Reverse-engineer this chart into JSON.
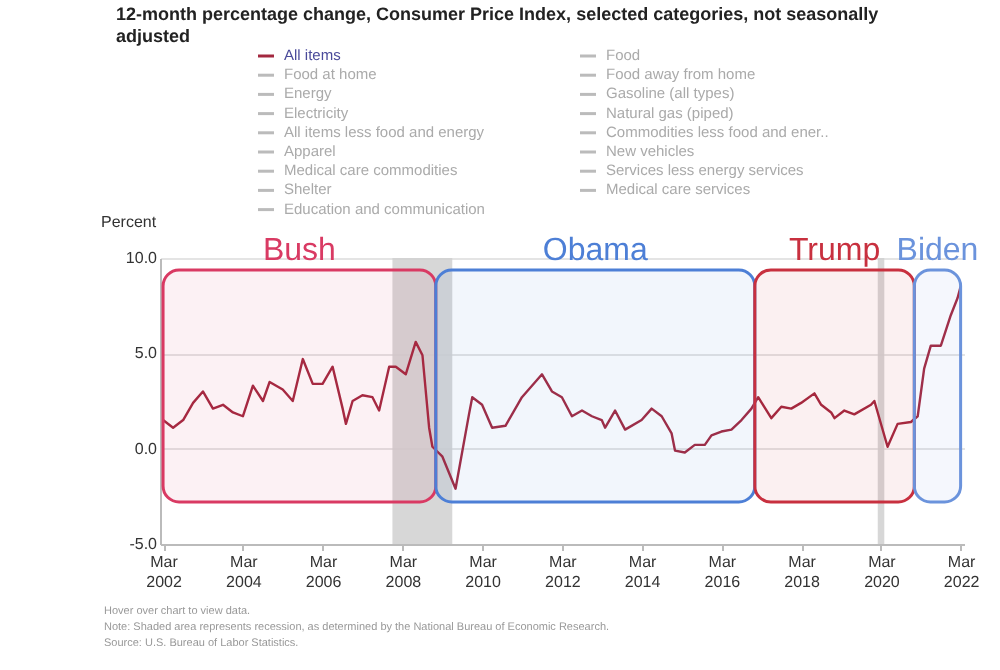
{
  "chart_data": {
    "type": "line",
    "title": [
      "12-month percentage change, Consumer Price Index, selected categories, not seasonally",
      "adjusted"
    ],
    "ylabel": "Percent",
    "x": [
      "2002-03",
      "2002-06",
      "2002-09",
      "2002-12",
      "2003-03",
      "2003-06",
      "2003-09",
      "2003-12",
      "2004-03",
      "2004-06",
      "2004-09",
      "2004-11",
      "2005-03",
      "2005-06",
      "2005-09",
      "2005-12",
      "2006-03",
      "2006-06",
      "2006-09",
      "2006-10",
      "2006-12",
      "2007-03",
      "2007-06",
      "2007-08",
      "2007-11",
      "2008-01",
      "2008-04",
      "2008-07",
      "2008-09",
      "2008-11",
      "2008-12",
      "2009-03",
      "2009-07",
      "2009-11",
      "2009-12",
      "2010-03",
      "2010-06",
      "2010-10",
      "2011-03",
      "2011-09",
      "2011-12",
      "2012-03",
      "2012-06",
      "2012-09",
      "2012-12",
      "2013-03",
      "2013-04",
      "2013-07",
      "2013-10",
      "2014-03",
      "2014-06",
      "2014-09",
      "2014-12",
      "2015-01",
      "2015-04",
      "2015-07",
      "2015-10",
      "2015-12",
      "2016-03",
      "2016-06",
      "2016-09",
      "2016-12",
      "2017-02",
      "2017-06",
      "2017-09",
      "2017-12",
      "2018-03",
      "2018-07",
      "2018-09",
      "2018-12",
      "2019-01",
      "2019-04",
      "2019-07",
      "2019-12",
      "2020-01",
      "2020-05",
      "2020-08",
      "2020-12",
      "2021-02",
      "2021-04",
      "2021-06",
      "2021-09",
      "2021-12",
      "2022-02",
      "2022-03"
    ],
    "series": [
      {
        "name": "All items",
        "color": "#a3283f",
        "values": [
          1.5,
          1.1,
          1.5,
          2.4,
          3.0,
          2.1,
          2.3,
          1.9,
          1.7,
          3.3,
          2.5,
          3.5,
          3.1,
          2.5,
          4.7,
          3.4,
          3.4,
          4.3,
          2.1,
          1.3,
          2.5,
          2.8,
          2.7,
          2.0,
          4.3,
          4.3,
          3.9,
          5.6,
          4.9,
          1.1,
          0.1,
          -0.4,
          -2.1,
          1.8,
          2.7,
          2.3,
          1.1,
          1.2,
          2.7,
          3.9,
          3.0,
          2.7,
          1.7,
          2.0,
          1.7,
          1.5,
          1.1,
          2.0,
          1.0,
          1.5,
          2.1,
          1.7,
          0.8,
          -0.1,
          -0.2,
          0.2,
          0.2,
          0.7,
          0.9,
          1.0,
          1.5,
          2.1,
          2.7,
          1.6,
          2.2,
          2.1,
          2.4,
          2.9,
          2.3,
          1.9,
          1.6,
          2.0,
          1.8,
          2.3,
          2.5,
          0.1,
          1.3,
          1.4,
          1.7,
          4.2,
          5.4,
          5.4,
          7.0,
          7.9,
          8.5
        ]
      },
      {
        "name": "Food",
        "color": "#bbbbbb",
        "values": [
          null,
          null,
          null,
          null,
          null,
          null,
          null,
          null,
          null,
          null,
          null,
          null,
          null,
          null,
          null,
          null,
          null,
          null,
          null,
          null,
          null,
          null,
          null,
          null,
          null,
          null,
          null,
          null,
          null,
          null,
          null,
          null,
          null,
          null,
          null,
          null,
          null,
          null,
          null,
          null,
          null,
          null,
          null,
          null,
          null,
          null,
          null,
          null,
          null,
          null,
          null,
          null,
          null,
          null,
          null,
          null,
          null,
          null,
          null,
          null,
          null,
          null,
          null,
          null,
          null,
          null,
          null,
          null,
          null,
          null,
          null,
          null,
          null,
          null,
          null,
          null,
          null,
          null,
          null,
          null,
          null,
          null,
          null,
          null,
          null
        ]
      },
      {
        "name": "Food at home",
        "color": "#bbbbbb",
        "values": [
          null,
          null,
          null,
          null,
          null,
          null,
          null,
          null,
          null,
          null,
          null,
          null,
          null,
          null,
          null,
          null,
          null,
          null,
          null,
          null,
          null,
          null,
          null,
          null,
          null,
          null,
          null,
          null,
          null,
          null,
          null,
          null,
          null,
          null,
          null,
          null,
          null,
          null,
          null,
          null,
          null,
          null,
          null,
          null,
          null,
          null,
          null,
          null,
          null,
          null,
          null,
          null,
          null,
          null,
          null,
          null,
          null,
          null,
          null,
          null,
          null,
          null,
          null,
          null,
          null,
          null,
          null,
          null,
          null,
          null,
          null,
          null,
          null,
          null,
          null,
          null,
          null,
          null,
          null,
          null,
          null,
          null,
          null,
          null,
          null
        ]
      },
      {
        "name": "Food away from home",
        "color": "#bbbbbb",
        "values": [
          null,
          null,
          null,
          null,
          null,
          null,
          null,
          null,
          null,
          null,
          null,
          null,
          null,
          null,
          null,
          null,
          null,
          null,
          null,
          null,
          null,
          null,
          null,
          null,
          null,
          null,
          null,
          null,
          null,
          null,
          null,
          null,
          null,
          null,
          null,
          null,
          null,
          null,
          null,
          null,
          null,
          null,
          null,
          null,
          null,
          null,
          null,
          null,
          null,
          null,
          null,
          null,
          null,
          null,
          null,
          null,
          null,
          null,
          null,
          null,
          null,
          null,
          null,
          null,
          null,
          null,
          null,
          null,
          null,
          null,
          null,
          null,
          null,
          null,
          null,
          null,
          null,
          null,
          null,
          null,
          null,
          null,
          null,
          null,
          null
        ]
      },
      {
        "name": "Energy",
        "color": "#bbbbbb",
        "values": [
          null,
          null,
          null,
          null,
          null,
          null,
          null,
          null,
          null,
          null,
          null,
          null,
          null,
          null,
          null,
          null,
          null,
          null,
          null,
          null,
          null,
          null,
          null,
          null,
          null,
          null,
          null,
          null,
          null,
          null,
          null,
          null,
          null,
          null,
          null,
          null,
          null,
          null,
          null,
          null,
          null,
          null,
          null,
          null,
          null,
          null,
          null,
          null,
          null,
          null,
          null,
          null,
          null,
          null,
          null,
          null,
          null,
          null,
          null,
          null,
          null,
          null,
          null,
          null,
          null,
          null,
          null,
          null,
          null,
          null,
          null,
          null,
          null,
          null,
          null,
          null,
          null,
          null,
          null,
          null,
          null,
          null,
          null,
          null,
          null
        ]
      },
      {
        "name": "Gasoline (all types)",
        "color": "#bbbbbb",
        "values": [
          null,
          null,
          null,
          null,
          null,
          null,
          null,
          null,
          null,
          null,
          null,
          null,
          null,
          null,
          null,
          null,
          null,
          null,
          null,
          null,
          null,
          null,
          null,
          null,
          null,
          null,
          null,
          null,
          null,
          null,
          null,
          null,
          null,
          null,
          null,
          null,
          null,
          null,
          null,
          null,
          null,
          null,
          null,
          null,
          null,
          null,
          null,
          null,
          null,
          null,
          null,
          null,
          null,
          null,
          null,
          null,
          null,
          null,
          null,
          null,
          null,
          null,
          null,
          null,
          null,
          null,
          null,
          null,
          null,
          null,
          null,
          null,
          null,
          null,
          null,
          null,
          null,
          null,
          null,
          null,
          null,
          null,
          null,
          null,
          null
        ]
      },
      {
        "name": "Electricity",
        "color": "#bbbbbb",
        "values": [
          null,
          null,
          null,
          null,
          null,
          null,
          null,
          null,
          null,
          null,
          null,
          null,
          null,
          null,
          null,
          null,
          null,
          null,
          null,
          null,
          null,
          null,
          null,
          null,
          null,
          null,
          null,
          null,
          null,
          null,
          null,
          null,
          null,
          null,
          null,
          null,
          null,
          null,
          null,
          null,
          null,
          null,
          null,
          null,
          null,
          null,
          null,
          null,
          null,
          null,
          null,
          null,
          null,
          null,
          null,
          null,
          null,
          null,
          null,
          null,
          null,
          null,
          null,
          null,
          null,
          null,
          null,
          null,
          null,
          null,
          null,
          null,
          null,
          null,
          null,
          null,
          null,
          null,
          null,
          null,
          null,
          null,
          null,
          null,
          null
        ]
      },
      {
        "name": "Natural gas (piped)",
        "color": "#bbbbbb",
        "values": [
          null,
          null,
          null,
          null,
          null,
          null,
          null,
          null,
          null,
          null,
          null,
          null,
          null,
          null,
          null,
          null,
          null,
          null,
          null,
          null,
          null,
          null,
          null,
          null,
          null,
          null,
          null,
          null,
          null,
          null,
          null,
          null,
          null,
          null,
          null,
          null,
          null,
          null,
          null,
          null,
          null,
          null,
          null,
          null,
          null,
          null,
          null,
          null,
          null,
          null,
          null,
          null,
          null,
          null,
          null,
          null,
          null,
          null,
          null,
          null,
          null,
          null,
          null,
          null,
          null,
          null,
          null,
          null,
          null,
          null,
          null,
          null,
          null,
          null,
          null,
          null,
          null,
          null,
          null,
          null,
          null,
          null,
          null,
          null,
          null
        ]
      },
      {
        "name": "All items less food and energy",
        "color": "#bbbbbb",
        "values": [
          null,
          null,
          null,
          null,
          null,
          null,
          null,
          null,
          null,
          null,
          null,
          null,
          null,
          null,
          null,
          null,
          null,
          null,
          null,
          null,
          null,
          null,
          null,
          null,
          null,
          null,
          null,
          null,
          null,
          null,
          null,
          null,
          null,
          null,
          null,
          null,
          null,
          null,
          null,
          null,
          null,
          null,
          null,
          null,
          null,
          null,
          null,
          null,
          null,
          null,
          null,
          null,
          null,
          null,
          null,
          null,
          null,
          null,
          null,
          null,
          null,
          null,
          null,
          null,
          null,
          null,
          null,
          null,
          null,
          null,
          null,
          null,
          null,
          null,
          null,
          null,
          null,
          null,
          null,
          null,
          null,
          null,
          null,
          null,
          null
        ]
      },
      {
        "name": "Commodities less food and ener..",
        "color": "#bbbbbb",
        "values": [
          null,
          null,
          null,
          null,
          null,
          null,
          null,
          null,
          null,
          null,
          null,
          null,
          null,
          null,
          null,
          null,
          null,
          null,
          null,
          null,
          null,
          null,
          null,
          null,
          null,
          null,
          null,
          null,
          null,
          null,
          null,
          null,
          null,
          null,
          null,
          null,
          null,
          null,
          null,
          null,
          null,
          null,
          null,
          null,
          null,
          null,
          null,
          null,
          null,
          null,
          null,
          null,
          null,
          null,
          null,
          null,
          null,
          null,
          null,
          null,
          null,
          null,
          null,
          null,
          null,
          null,
          null,
          null,
          null,
          null,
          null,
          null,
          null,
          null,
          null,
          null,
          null,
          null,
          null,
          null,
          null,
          null,
          null,
          null,
          null
        ]
      },
      {
        "name": "Apparel",
        "color": "#bbbbbb",
        "values": [
          null,
          null,
          null,
          null,
          null,
          null,
          null,
          null,
          null,
          null,
          null,
          null,
          null,
          null,
          null,
          null,
          null,
          null,
          null,
          null,
          null,
          null,
          null,
          null,
          null,
          null,
          null,
          null,
          null,
          null,
          null,
          null,
          null,
          null,
          null,
          null,
          null,
          null,
          null,
          null,
          null,
          null,
          null,
          null,
          null,
          null,
          null,
          null,
          null,
          null,
          null,
          null,
          null,
          null,
          null,
          null,
          null,
          null,
          null,
          null,
          null,
          null,
          null,
          null,
          null,
          null,
          null,
          null,
          null,
          null,
          null,
          null,
          null,
          null,
          null,
          null,
          null,
          null,
          null,
          null,
          null,
          null,
          null,
          null,
          null
        ]
      },
      {
        "name": "New vehicles",
        "color": "#bbbbbb",
        "values": [
          null,
          null,
          null,
          null,
          null,
          null,
          null,
          null,
          null,
          null,
          null,
          null,
          null,
          null,
          null,
          null,
          null,
          null,
          null,
          null,
          null,
          null,
          null,
          null,
          null,
          null,
          null,
          null,
          null,
          null,
          null,
          null,
          null,
          null,
          null,
          null,
          null,
          null,
          null,
          null,
          null,
          null,
          null,
          null,
          null,
          null,
          null,
          null,
          null,
          null,
          null,
          null,
          null,
          null,
          null,
          null,
          null,
          null,
          null,
          null,
          null,
          null,
          null,
          null,
          null,
          null,
          null,
          null,
          null,
          null,
          null,
          null,
          null,
          null,
          null,
          null,
          null,
          null,
          null,
          null,
          null,
          null,
          null,
          null,
          null
        ]
      },
      {
        "name": "Medical care commodities",
        "color": "#bbbbbb",
        "values": [
          null,
          null,
          null,
          null,
          null,
          null,
          null,
          null,
          null,
          null,
          null,
          null,
          null,
          null,
          null,
          null,
          null,
          null,
          null,
          null,
          null,
          null,
          null,
          null,
          null,
          null,
          null,
          null,
          null,
          null,
          null,
          null,
          null,
          null,
          null,
          null,
          null,
          null,
          null,
          null,
          null,
          null,
          null,
          null,
          null,
          null,
          null,
          null,
          null,
          null,
          null,
          null,
          null,
          null,
          null,
          null,
          null,
          null,
          null,
          null,
          null,
          null,
          null,
          null,
          null,
          null,
          null,
          null,
          null,
          null,
          null,
          null,
          null,
          null,
          null,
          null,
          null,
          null,
          null,
          null,
          null,
          null,
          null,
          null,
          null
        ]
      },
      {
        "name": "Services less energy services",
        "color": "#bbbbbb",
        "values": [
          null,
          null,
          null,
          null,
          null,
          null,
          null,
          null,
          null,
          null,
          null,
          null,
          null,
          null,
          null,
          null,
          null,
          null,
          null,
          null,
          null,
          null,
          null,
          null,
          null,
          null,
          null,
          null,
          null,
          null,
          null,
          null,
          null,
          null,
          null,
          null,
          null,
          null,
          null,
          null,
          null,
          null,
          null,
          null,
          null,
          null,
          null,
          null,
          null,
          null,
          null,
          null,
          null,
          null,
          null,
          null,
          null,
          null,
          null,
          null,
          null,
          null,
          null,
          null,
          null,
          null,
          null,
          null,
          null,
          null,
          null,
          null,
          null,
          null,
          null,
          null,
          null,
          null,
          null,
          null,
          null,
          null,
          null,
          null,
          null
        ]
      },
      {
        "name": "Shelter",
        "color": "#bbbbbb",
        "values": [
          null,
          null,
          null,
          null,
          null,
          null,
          null,
          null,
          null,
          null,
          null,
          null,
          null,
          null,
          null,
          null,
          null,
          null,
          null,
          null,
          null,
          null,
          null,
          null,
          null,
          null,
          null,
          null,
          null,
          null,
          null,
          null,
          null,
          null,
          null,
          null,
          null,
          null,
          null,
          null,
          null,
          null,
          null,
          null,
          null,
          null,
          null,
          null,
          null,
          null,
          null,
          null,
          null,
          null,
          null,
          null,
          null,
          null,
          null,
          null,
          null,
          null,
          null,
          null,
          null,
          null,
          null,
          null,
          null,
          null,
          null,
          null,
          null,
          null,
          null,
          null,
          null,
          null,
          null,
          null,
          null,
          null,
          null,
          null,
          null
        ]
      },
      {
        "name": "Medical care services",
        "color": "#bbbbbb",
        "values": [
          null,
          null,
          null,
          null,
          null,
          null,
          null,
          null,
          null,
          null,
          null,
          null,
          null,
          null,
          null,
          null,
          null,
          null,
          null,
          null,
          null,
          null,
          null,
          null,
          null,
          null,
          null,
          null,
          null,
          null,
          null,
          null,
          null,
          null,
          null,
          null,
          null,
          null,
          null,
          null,
          null,
          null,
          null,
          null,
          null,
          null,
          null,
          null,
          null,
          null,
          null,
          null,
          null,
          null,
          null,
          null,
          null,
          null,
          null,
          null,
          null,
          null,
          null,
          null,
          null,
          null,
          null,
          null,
          null,
          null,
          null,
          null,
          null,
          null,
          null,
          null,
          null,
          null,
          null,
          null,
          null,
          null,
          null,
          null,
          null
        ]
      },
      {
        "name": "Education and communication",
        "color": "#bbbbbb",
        "values": [
          null,
          null,
          null,
          null,
          null,
          null,
          null,
          null,
          null,
          null,
          null,
          null,
          null,
          null,
          null,
          null,
          null,
          null,
          null,
          null,
          null,
          null,
          null,
          null,
          null,
          null,
          null,
          null,
          null,
          null,
          null,
          null,
          null,
          null,
          null,
          null,
          null,
          null,
          null,
          null,
          null,
          null,
          null,
          null,
          null,
          null,
          null,
          null,
          null,
          null,
          null,
          null,
          null,
          null,
          null,
          null,
          null,
          null,
          null,
          null,
          null,
          null,
          null,
          null,
          null,
          null,
          null,
          null,
          null,
          null,
          null,
          null,
          null,
          null,
          null,
          null,
          null,
          null,
          null,
          null,
          null,
          null,
          null,
          null,
          null
        ]
      }
    ],
    "xlim": [
      "2002-02",
      "2022-04"
    ],
    "xticks": [
      {
        "value": "2002-03",
        "label": "Mar 2002"
      },
      {
        "value": "2004-03",
        "label": "Mar 2004"
      },
      {
        "value": "2006-03",
        "label": "Mar 2006"
      },
      {
        "value": "2008-03",
        "label": "Mar 2008"
      },
      {
        "value": "2010-03",
        "label": "Mar 2010"
      },
      {
        "value": "2012-03",
        "label": "Mar 2012"
      },
      {
        "value": "2014-03",
        "label": "Mar 2014"
      },
      {
        "value": "2016-03",
        "label": "Mar 2016"
      },
      {
        "value": "2018-03",
        "label": "Mar 2018"
      },
      {
        "value": "2020-03",
        "label": "Mar 2020"
      },
      {
        "value": "2022-03",
        "label": "Mar 2022"
      }
    ],
    "ylim": [
      -5,
      10
    ],
    "yticks": [
      {
        "value": -5,
        "label": "-5.0"
      },
      {
        "value": 0,
        "label": "0.0"
      },
      {
        "value": 5,
        "label": "5.0"
      },
      {
        "value": 10,
        "label": "10.0"
      }
    ],
    "grid": "y",
    "legend": "top",
    "marker": "none",
    "line_style": "solid",
    "bands": [
      {
        "axis": "x",
        "from": "2007-12",
        "to": "2009-06",
        "color": "#d0d0d0"
      },
      {
        "axis": "x",
        "from": "2020-02",
        "to": "2020-04",
        "color": "#d0d0d0"
      },
      {
        "axis": "x",
        "from": "2002-03",
        "to": "2009-01",
        "label": "Bush",
        "color": "#d93a63"
      },
      {
        "axis": "x",
        "from": "2009-01",
        "to": "2017-01",
        "label": "Obama",
        "color": "#4d7fd6"
      },
      {
        "axis": "x",
        "from": "2017-01",
        "to": "2021-01",
        "label": "Trump",
        "color": "#c8303f"
      },
      {
        "axis": "x",
        "from": "2021-01",
        "to": "2022-03",
        "label": "Biden",
        "color": "#6b93dc"
      }
    ],
    "annotations": [
      "Hover over chart to view data.",
      "Note: Shaded area represents recession, as determined by the National Bureau of Economic Research.",
      "Source: U.S. Bureau of Labor Statistics."
    ]
  }
}
